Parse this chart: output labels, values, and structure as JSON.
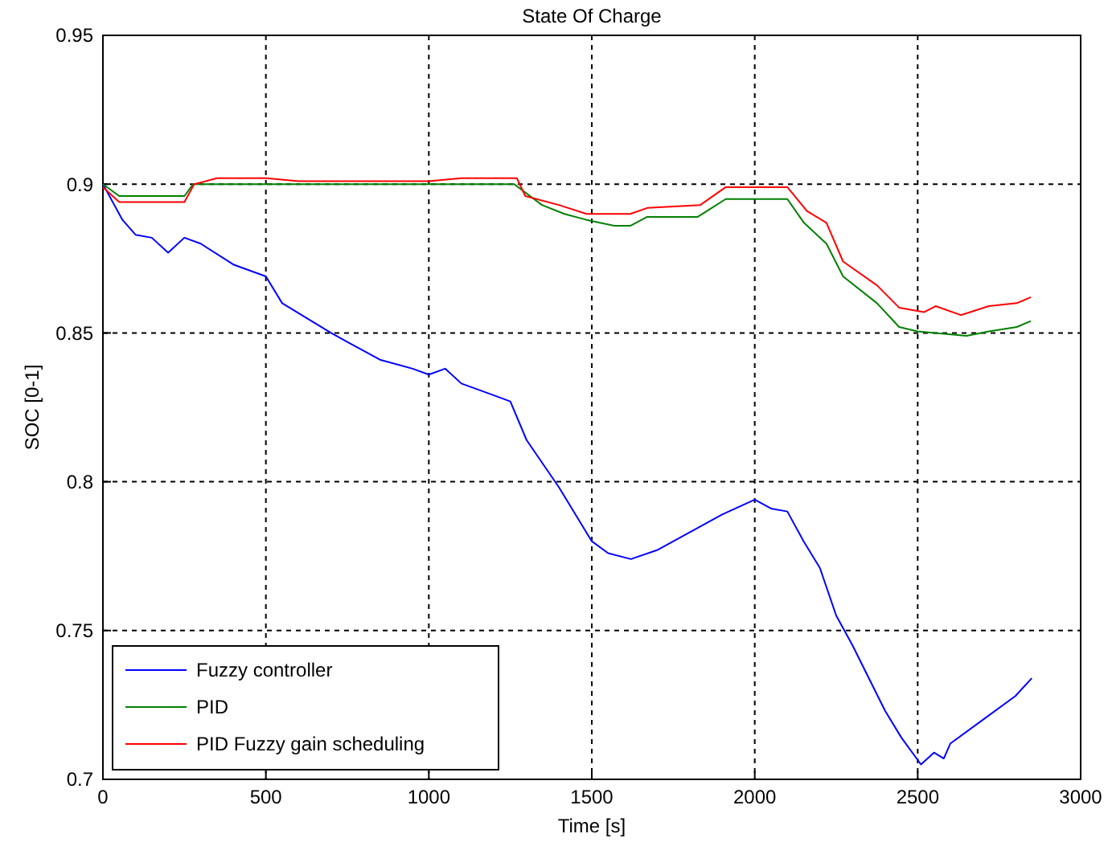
{
  "chart_data": {
    "type": "line",
    "title": "State Of Charge",
    "xlabel": "Time [s]",
    "ylabel": "SOC [0-1]",
    "xlim": [
      0,
      3000
    ],
    "xticks": [
      0,
      500,
      1000,
      1500,
      2000,
      2500,
      3000
    ],
    "ylim": [
      0.7,
      0.95
    ],
    "yticks": [
      0.7,
      0.75,
      0.8,
      0.85,
      0.9,
      0.95
    ],
    "grid": true,
    "legend": "bottom left",
    "line_style": "solid",
    "marker": "none",
    "series": [
      {
        "name": "Fuzzy controller",
        "color": "#0000ff",
        "x": [
          0,
          60,
          100,
          150,
          200,
          250,
          300,
          400,
          500,
          550,
          700,
          750,
          850,
          950,
          1000,
          1050,
          1100,
          1200,
          1250,
          1300,
          1400,
          1500,
          1550,
          1620,
          1700,
          1800,
          1900,
          2000,
          2050,
          2100,
          2150,
          2200,
          2250,
          2300,
          2400,
          2450,
          2510,
          2550,
          2580,
          2600,
          2700,
          2800,
          2850
        ],
        "values": [
          0.9,
          0.888,
          0.883,
          0.882,
          0.877,
          0.882,
          0.88,
          0.873,
          0.869,
          0.86,
          0.85,
          0.847,
          0.841,
          0.838,
          0.836,
          0.838,
          0.833,
          0.829,
          0.827,
          0.814,
          0.798,
          0.78,
          0.776,
          0.774,
          0.777,
          0.783,
          0.789,
          0.794,
          0.791,
          0.79,
          0.78,
          0.771,
          0.755,
          0.745,
          0.723,
          0.714,
          0.705,
          0.709,
          0.707,
          0.712,
          0.72,
          0.728,
          0.734
        ]
      },
      {
        "name": "PID",
        "color": "#008000",
        "x": [
          0,
          50,
          150,
          250,
          277,
          300,
          600,
          900,
          1262,
          1347,
          1416,
          1484,
          1570,
          1618,
          1670,
          1825,
          1911,
          2000,
          2100,
          2151,
          2220,
          2271,
          2375,
          2443,
          2500,
          2650,
          2718,
          2804,
          2847
        ],
        "values": [
          0.9,
          0.896,
          0.896,
          0.896,
          0.9,
          0.9,
          0.9,
          0.9,
          0.9,
          0.893,
          0.89,
          0.888,
          0.886,
          0.886,
          0.889,
          0.889,
          0.895,
          0.895,
          0.895,
          0.887,
          0.88,
          0.869,
          0.86,
          0.852,
          0.8505,
          0.849,
          0.8505,
          0.852,
          0.854
        ]
      },
      {
        "name": "PID Fuzzy gain scheduling",
        "color": "#ff0000",
        "x": [
          0,
          50,
          150,
          250,
          280,
          350,
          500,
          600,
          900,
          1000,
          1100,
          1270,
          1296,
          1399,
          1484,
          1570,
          1618,
          1670,
          1833,
          1911,
          2000,
          2100,
          2160,
          2220,
          2271,
          2375,
          2443,
          2520,
          2555,
          2632,
          2718,
          2804,
          2847
        ],
        "values": [
          0.899,
          0.894,
          0.894,
          0.894,
          0.9,
          0.902,
          0.902,
          0.901,
          0.901,
          0.901,
          0.902,
          0.902,
          0.896,
          0.893,
          0.89,
          0.89,
          0.89,
          0.892,
          0.893,
          0.899,
          0.899,
          0.899,
          0.891,
          0.887,
          0.874,
          0.866,
          0.8585,
          0.857,
          0.859,
          0.856,
          0.859,
          0.86,
          0.862
        ]
      }
    ]
  }
}
